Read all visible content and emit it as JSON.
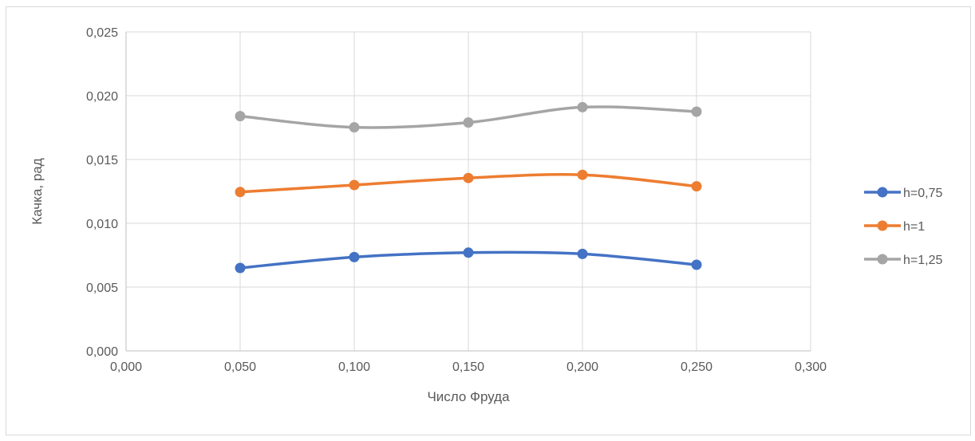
{
  "chart_data": {
    "type": "line",
    "smooth": true,
    "title": "",
    "xlabel": "Число Фруда",
    "ylabel": "Качка, рад",
    "xlim": [
      0,
      0.3
    ],
    "ylim": [
      0,
      0.025
    ],
    "x_ticks": [
      0,
      0.05,
      0.1,
      0.15,
      0.2,
      0.25,
      0.3
    ],
    "y_ticks": [
      0,
      0.005,
      0.01,
      0.015,
      0.02,
      0.025
    ],
    "x_tick_labels": [
      "0,000",
      "0,050",
      "0,100",
      "0,150",
      "0,200",
      "0,250",
      "0,300"
    ],
    "y_tick_labels": [
      "0,000",
      "0,005",
      "0,010",
      "0,015",
      "0,020",
      "0,025"
    ],
    "grid": true,
    "legend_position": "right",
    "x": [
      0.05,
      0.1,
      0.15,
      0.2,
      0.25
    ],
    "series": [
      {
        "name": "h=0,75",
        "color": "#4472C4",
        "values": [
          0.0065,
          0.00735,
          0.0077,
          0.0076,
          0.00675
        ]
      },
      {
        "name": "h=1",
        "color": "#ED7D31",
        "values": [
          0.01245,
          0.013,
          0.01355,
          0.0138,
          0.0129
        ]
      },
      {
        "name": "h=1,25",
        "color": "#A5A5A5",
        "values": [
          0.0184,
          0.01752,
          0.0179,
          0.0191,
          0.01875
        ]
      }
    ]
  }
}
